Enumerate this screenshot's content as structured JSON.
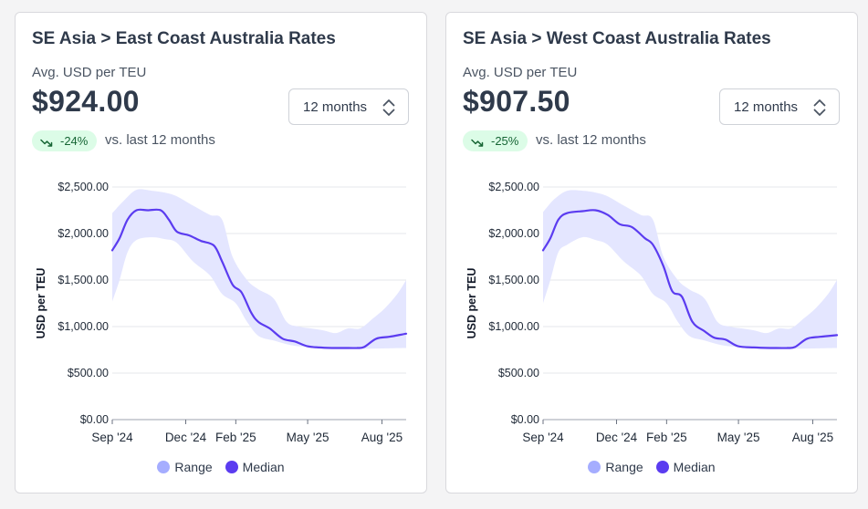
{
  "colors": {
    "range": "#a5adff",
    "range_fill": "#e4e6ff",
    "median": "#5b3cf0",
    "badge_bg": "#dcfce7",
    "badge_text": "#166534"
  },
  "cards": [
    {
      "title": "SE Asia > East Coast Australia Rates",
      "metric_label": "Avg. USD per TEU",
      "metric_value": "$924.00",
      "select_value": "12 months",
      "change_pct": "-24%",
      "compare_text": "vs. last 12 months",
      "legend": {
        "range": "Range",
        "median": "Median"
      }
    },
    {
      "title": "SE Asia > West Coast Australia Rates",
      "metric_label": "Avg. USD per TEU",
      "metric_value": "$907.50",
      "select_value": "12 months",
      "change_pct": "-25%",
      "compare_text": "vs. last 12 months",
      "legend": {
        "range": "Range",
        "median": "Median"
      }
    }
  ],
  "chart_data": [
    {
      "type": "area",
      "ylabel": "USD per TEU",
      "ylim": [
        0,
        2500
      ],
      "y_ticks": [
        "$0.00",
        "$500.00",
        "$1,000.00",
        "$1,500.00",
        "$2,000.00",
        "$2,500.00"
      ],
      "y_tick_values": [
        0,
        500,
        1000,
        1500,
        2000,
        2500
      ],
      "x_ticks": [
        "Sep '24",
        "Dec '24",
        "Feb '25",
        "May '25",
        "Aug '25"
      ],
      "x_tick_values": [
        "2024-09-01",
        "2024-12-01",
        "2025-02-01",
        "2025-05-01",
        "2025-08-01"
      ],
      "xlim": [
        "2024-09-01",
        "2025-08-31"
      ],
      "grid": "horizontal",
      "legend_position": "bottom",
      "series": [
        {
          "name": "Median",
          "points": [
            [
              "2024-09-01",
              1820
            ],
            [
              "2024-09-10",
              1950
            ],
            [
              "2024-09-20",
              2150
            ],
            [
              "2024-10-01",
              2250
            ],
            [
              "2024-10-15",
              2250
            ],
            [
              "2024-10-31",
              2250
            ],
            [
              "2024-11-10",
              2150
            ],
            [
              "2024-11-20",
              2020
            ],
            [
              "2024-12-05",
              1980
            ],
            [
              "2024-12-20",
              1920
            ],
            [
              "2025-01-05",
              1870
            ],
            [
              "2025-01-15",
              1700
            ],
            [
              "2025-01-28",
              1450
            ],
            [
              "2025-02-08",
              1370
            ],
            [
              "2025-02-20",
              1150
            ],
            [
              "2025-03-01",
              1050
            ],
            [
              "2025-03-15",
              980
            ],
            [
              "2025-03-31",
              870
            ],
            [
              "2025-04-15",
              840
            ],
            [
              "2025-04-30",
              790
            ],
            [
              "2025-05-15",
              775
            ],
            [
              "2025-06-01",
              770
            ],
            [
              "2025-06-15",
              770
            ],
            [
              "2025-07-01",
              770
            ],
            [
              "2025-07-10",
              780
            ],
            [
              "2025-07-25",
              870
            ],
            [
              "2025-08-10",
              890
            ],
            [
              "2025-08-31",
              924
            ]
          ]
        },
        {
          "name": "Range",
          "upper": [
            [
              "2024-09-01",
              2220
            ],
            [
              "2024-09-15",
              2350
            ],
            [
              "2024-10-01",
              2470
            ],
            [
              "2024-10-20",
              2460
            ],
            [
              "2024-11-05",
              2440
            ],
            [
              "2024-11-20",
              2400
            ],
            [
              "2024-12-10",
              2300
            ],
            [
              "2024-12-31",
              2200
            ],
            [
              "2025-01-15",
              2150
            ],
            [
              "2025-01-28",
              1750
            ],
            [
              "2025-02-15",
              1500
            ],
            [
              "2025-03-01",
              1400
            ],
            [
              "2025-03-20",
              1300
            ],
            [
              "2025-04-05",
              1050
            ],
            [
              "2025-04-20",
              1000
            ],
            [
              "2025-05-05",
              980
            ],
            [
              "2025-05-20",
              960
            ],
            [
              "2025-06-05",
              930
            ],
            [
              "2025-06-20",
              980
            ],
            [
              "2025-07-05",
              980
            ],
            [
              "2025-07-20",
              1080
            ],
            [
              "2025-08-05",
              1200
            ],
            [
              "2025-08-20",
              1350
            ],
            [
              "2025-08-31",
              1500
            ]
          ],
          "lower": [
            [
              "2024-09-01",
              1270
            ],
            [
              "2024-09-10",
              1500
            ],
            [
              "2024-09-20",
              1800
            ],
            [
              "2024-10-01",
              1930
            ],
            [
              "2024-10-20",
              1960
            ],
            [
              "2024-11-05",
              1940
            ],
            [
              "2024-11-20",
              1900
            ],
            [
              "2024-12-10",
              1700
            ],
            [
              "2024-12-31",
              1550
            ],
            [
              "2025-01-15",
              1350
            ],
            [
              "2025-02-01",
              1250
            ],
            [
              "2025-02-15",
              1050
            ],
            [
              "2025-03-01",
              900
            ],
            [
              "2025-03-20",
              850
            ],
            [
              "2025-04-10",
              800
            ],
            [
              "2025-05-01",
              780
            ],
            [
              "2025-06-01",
              760
            ],
            [
              "2025-07-01",
              760
            ],
            [
              "2025-08-01",
              765
            ],
            [
              "2025-08-31",
              770
            ]
          ]
        }
      ]
    },
    {
      "type": "area",
      "ylabel": "USD per TEU",
      "ylim": [
        0,
        2500
      ],
      "y_ticks": [
        "$0.00",
        "$500.00",
        "$1,000.00",
        "$1,500.00",
        "$2,000.00",
        "$2,500.00"
      ],
      "y_tick_values": [
        0,
        500,
        1000,
        1500,
        2000,
        2500
      ],
      "x_ticks": [
        "Sep '24",
        "Dec '24",
        "Feb '25",
        "May '25",
        "Aug '25"
      ],
      "x_tick_values": [
        "2024-09-01",
        "2024-12-01",
        "2025-02-01",
        "2025-05-01",
        "2025-08-01"
      ],
      "xlim": [
        "2024-09-01",
        "2025-08-31"
      ],
      "grid": "horizontal",
      "legend_position": "bottom",
      "series": [
        {
          "name": "Median",
          "points": [
            [
              "2024-09-01",
              1820
            ],
            [
              "2024-09-10",
              1950
            ],
            [
              "2024-09-20",
              2150
            ],
            [
              "2024-10-01",
              2220
            ],
            [
              "2024-10-20",
              2240
            ],
            [
              "2024-11-05",
              2250
            ],
            [
              "2024-11-20",
              2200
            ],
            [
              "2024-12-05",
              2100
            ],
            [
              "2024-12-20",
              2070
            ],
            [
              "2025-01-05",
              1950
            ],
            [
              "2025-01-15",
              1880
            ],
            [
              "2025-01-28",
              1650
            ],
            [
              "2025-02-08",
              1380
            ],
            [
              "2025-02-20",
              1320
            ],
            [
              "2025-03-05",
              1050
            ],
            [
              "2025-03-20",
              950
            ],
            [
              "2025-04-01",
              880
            ],
            [
              "2025-04-15",
              860
            ],
            [
              "2025-04-30",
              790
            ],
            [
              "2025-05-20",
              775
            ],
            [
              "2025-06-10",
              770
            ],
            [
              "2025-06-30",
              770
            ],
            [
              "2025-07-10",
              780
            ],
            [
              "2025-07-25",
              870
            ],
            [
              "2025-08-10",
              890
            ],
            [
              "2025-08-31",
              907.5
            ]
          ]
        },
        {
          "name": "Range",
          "upper": [
            [
              "2024-09-01",
              2230
            ],
            [
              "2024-09-15",
              2370
            ],
            [
              "2024-10-01",
              2460
            ],
            [
              "2024-10-20",
              2460
            ],
            [
              "2024-11-05",
              2440
            ],
            [
              "2024-11-20",
              2400
            ],
            [
              "2024-12-10",
              2300
            ],
            [
              "2024-12-31",
              2200
            ],
            [
              "2025-01-15",
              2150
            ],
            [
              "2025-01-28",
              1750
            ],
            [
              "2025-02-15",
              1500
            ],
            [
              "2025-03-01",
              1400
            ],
            [
              "2025-03-20",
              1300
            ],
            [
              "2025-04-05",
              1050
            ],
            [
              "2025-04-20",
              1000
            ],
            [
              "2025-05-05",
              980
            ],
            [
              "2025-05-20",
              960
            ],
            [
              "2025-06-05",
              930
            ],
            [
              "2025-06-20",
              980
            ],
            [
              "2025-07-05",
              980
            ],
            [
              "2025-07-20",
              1080
            ],
            [
              "2025-08-05",
              1200
            ],
            [
              "2025-08-20",
              1350
            ],
            [
              "2025-08-31",
              1500
            ]
          ],
          "lower": [
            [
              "2024-09-01",
              1250
            ],
            [
              "2024-09-10",
              1500
            ],
            [
              "2024-09-20",
              1800
            ],
            [
              "2024-10-01",
              1880
            ],
            [
              "2024-10-20",
              1960
            ],
            [
              "2024-11-05",
              1930
            ],
            [
              "2024-11-20",
              1880
            ],
            [
              "2024-12-10",
              1700
            ],
            [
              "2024-12-31",
              1550
            ],
            [
              "2025-01-15",
              1350
            ],
            [
              "2025-02-01",
              1250
            ],
            [
              "2025-02-15",
              1050
            ],
            [
              "2025-03-01",
              900
            ],
            [
              "2025-03-20",
              850
            ],
            [
              "2025-04-10",
              800
            ],
            [
              "2025-05-01",
              780
            ],
            [
              "2025-06-01",
              760
            ],
            [
              "2025-07-01",
              760
            ],
            [
              "2025-08-01",
              765
            ],
            [
              "2025-08-31",
              770
            ]
          ]
        }
      ]
    }
  ]
}
